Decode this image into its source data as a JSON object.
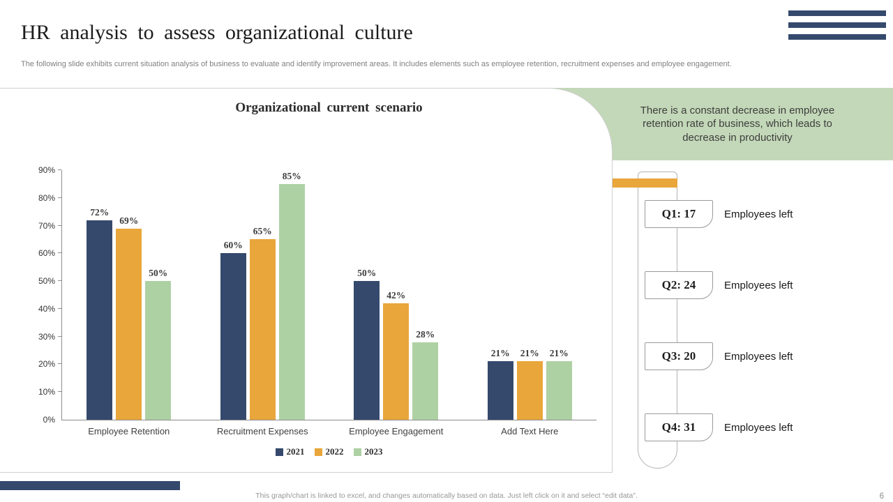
{
  "header": {
    "title": "HR analysis to assess organizational culture",
    "subtitle": "The following slide exhibits current situation analysis of business to evaluate and identify improvement areas. It includes elements such as employee retention, recruitment expenses and employee engagement."
  },
  "insight": {
    "text": "There is a constant decrease in employee retention rate of business, which leads to decrease in productivity"
  },
  "chart_data": {
    "type": "bar",
    "title": "Organizational current scenario",
    "categories": [
      "Employee Retention",
      "Recruitment Expenses",
      "Employee Engagement",
      "Add Text Here"
    ],
    "series": [
      {
        "name": "2021",
        "color": "#35496d",
        "values": [
          72,
          60,
          50,
          21
        ]
      },
      {
        "name": "2022",
        "color": "#e9a63b",
        "values": [
          69,
          65,
          42,
          21
        ]
      },
      {
        "name": "2023",
        "color": "#aed1a4",
        "values": [
          50,
          85,
          28,
          21
        ]
      }
    ],
    "ylim": [
      0,
      90
    ],
    "y_ticks": [
      "0%",
      "10%",
      "20%",
      "30%",
      "40%",
      "50%",
      "60%",
      "70%",
      "80%",
      "90%"
    ],
    "value_suffix": "%",
    "grid": false,
    "legend_position": "bottom"
  },
  "quarters": [
    {
      "label": "Q1: 17",
      "caption": "Employees left"
    },
    {
      "label": "Q2: 24",
      "caption": "Employees left"
    },
    {
      "label": "Q3: 20",
      "caption": "Employees left"
    },
    {
      "label": "Q4: 31",
      "caption": "Employees left"
    }
  ],
  "footer": {
    "note": "This graph/chart is linked to excel, and changes automatically based on data. Just left click on it and select “edit data”.",
    "page_number": "6"
  },
  "colors": {
    "navy": "#35496d",
    "orange": "#e9a63b",
    "green_panel": "#c3d8b8",
    "bar_green": "#aed1a4"
  }
}
